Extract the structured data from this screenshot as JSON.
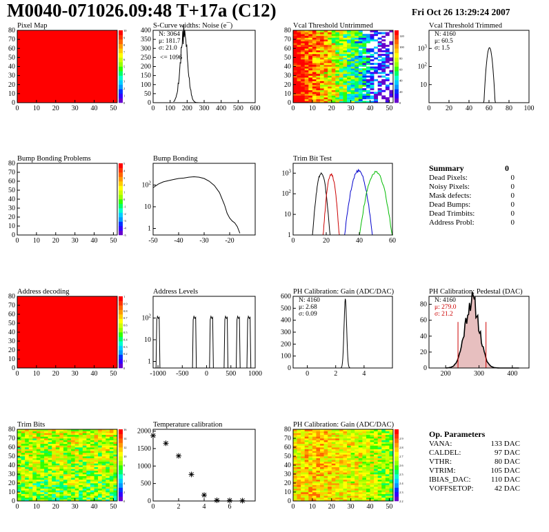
{
  "header": {
    "title": "M0040-071026.09:48 T+17a (C12)",
    "date": "Fri Oct 26 13:29:24 2007"
  },
  "colors": {
    "red": "#ff0000",
    "hist": "#000000",
    "trim_red": "#cc0000",
    "trim_blue": "#0000cc",
    "trim_green": "#00bb00",
    "stat_red": "#cc0000",
    "ped_fill": "#d08080"
  },
  "summary": {
    "title": "Summary",
    "total": "0",
    "rows": [
      {
        "label": "Dead Pixels:",
        "value": "0"
      },
      {
        "label": "Noisy Pixels:",
        "value": "0"
      },
      {
        "label": "Mask defects:",
        "value": "0"
      },
      {
        "label": "Dead Bumps:",
        "value": "0"
      },
      {
        "label": "Dead Trimbits:",
        "value": "0"
      },
      {
        "label": "Address Probl:",
        "value": "0"
      }
    ]
  },
  "op_params": {
    "title": "Op. Parameters",
    "rows": [
      {
        "label": "VANA:",
        "value": "133 DAC"
      },
      {
        "label": "CALDEL:",
        "value": "97 DAC"
      },
      {
        "label": "VTHR:",
        "value": "80 DAC"
      },
      {
        "label": "VTRIM:",
        "value": "105 DAC"
      },
      {
        "label": "IBIAS_DAC:",
        "value": "110 DAC"
      },
      {
        "label": "VOFFSETOP:",
        "value": "42 DAC"
      }
    ]
  },
  "chart_data": [
    {
      "id": "pixel-map",
      "type": "heatmap",
      "title": "Pixel Map",
      "xlim": [
        0,
        52
      ],
      "ylim": [
        0,
        80
      ],
      "xticks": [
        0,
        10,
        20,
        30,
        40,
        50
      ],
      "yticks": [
        0,
        10,
        20,
        30,
        40,
        50,
        60,
        70,
        80
      ],
      "zlim": [
        0,
        10
      ],
      "zticks": [
        0,
        1,
        2,
        3,
        4,
        5,
        6,
        7,
        8,
        9,
        10
      ],
      "fill": "uniform",
      "value": 10
    },
    {
      "id": "scurve-noise",
      "type": "line",
      "title": "S-Curve widths: Noise (e¯)",
      "xlim": [
        0,
        600
      ],
      "ylim": [
        0,
        400
      ],
      "xticks": [
        0,
        100,
        200,
        300,
        400,
        500,
        600
      ],
      "yticks": [
        0,
        50,
        100,
        150,
        200,
        250,
        300,
        350,
        400
      ],
      "stats": {
        "N": "3064",
        "mean": "181.7",
        "sigma": "21.0"
      },
      "annotation": "<= 1096",
      "peak": {
        "mu": 181.7,
        "sigma": 21.0,
        "height": 380
      }
    },
    {
      "id": "vcal-untrimmed",
      "type": "heatmap",
      "title": "Vcal Threshold Untrimmed",
      "xlim": [
        0,
        52
      ],
      "ylim": [
        0,
        80
      ],
      "xticks": [
        0,
        10,
        20,
        30,
        40,
        50
      ],
      "yticks": [
        0,
        10,
        20,
        30,
        40,
        50,
        60,
        70,
        80
      ],
      "zlim": [
        0,
        130
      ],
      "zticks": [
        0,
        20,
        40,
        60,
        80,
        100,
        120
      ],
      "fill": "gradient-x"
    },
    {
      "id": "vcal-trimmed",
      "type": "line",
      "title": "Vcal Threshold Trimmed",
      "xlim": [
        0,
        100
      ],
      "ylim": [
        1,
        10000
      ],
      "log_y": true,
      "xticks": [
        0,
        20,
        40,
        60,
        80,
        100
      ],
      "yticks": [
        10,
        100,
        1000
      ],
      "stats": {
        "N": "4160",
        "mean": "60.5",
        "sigma": "1.5"
      },
      "peak": {
        "mu": 60.5,
        "sigma": 1.5,
        "height": 1100
      }
    },
    {
      "id": "bump-problems",
      "type": "heatmap",
      "title": "Bump Bonding Problems",
      "xlim": [
        0,
        52
      ],
      "ylim": [
        0,
        80
      ],
      "xticks": [
        0,
        10,
        20,
        30,
        40,
        50
      ],
      "yticks": [
        0,
        10,
        20,
        30,
        40,
        50,
        60,
        70,
        80
      ],
      "zlim": [
        -5,
        5
      ],
      "zticks": [
        -5,
        -4,
        -3,
        -2,
        -1,
        0,
        1,
        2,
        3,
        4,
        5
      ],
      "fill": "empty"
    },
    {
      "id": "bump-bonding",
      "type": "line",
      "title": "Bump Bonding",
      "xlim": [
        -50,
        -10
      ],
      "ylim": [
        0.5,
        1000
      ],
      "log_y": true,
      "xticks": [
        -50,
        -40,
        -30,
        -20
      ],
      "yticks": [
        1,
        10,
        100
      ],
      "points": [
        [
          -50,
          75
        ],
        [
          -48,
          110
        ],
        [
          -46,
          140
        ],
        [
          -44,
          160
        ],
        [
          -42,
          180
        ],
        [
          -40,
          200
        ],
        [
          -38,
          210
        ],
        [
          -36,
          230
        ],
        [
          -34,
          240
        ],
        [
          -32,
          230
        ],
        [
          -30,
          200
        ],
        [
          -28,
          150
        ],
        [
          -26,
          95
        ],
        [
          -24,
          45
        ],
        [
          -22,
          12
        ],
        [
          -21,
          5
        ],
        [
          -20,
          3
        ],
        [
          -19,
          2.2
        ],
        [
          -18,
          1.8
        ],
        [
          -17,
          1.2
        ],
        [
          -16,
          0.6
        ]
      ]
    },
    {
      "id": "trim-bit-test",
      "type": "line",
      "title": "Trim Bit Test",
      "xlim": [
        0,
        60
      ],
      "ylim": [
        1,
        3000
      ],
      "log_y": true,
      "xticks": [
        0,
        20,
        40,
        60
      ],
      "yticks": [
        1,
        10,
        100,
        1000
      ],
      "series": [
        {
          "color": "#000000",
          "mu": 17,
          "sigma": 1.4,
          "height": 1000
        },
        {
          "color": "#cc0000",
          "mu": 23,
          "sigma": 1.3,
          "height": 900
        },
        {
          "color": "#0000cc",
          "mu": 39.5,
          "sigma": 2.2,
          "height": 1300
        },
        {
          "color": "#00bb00",
          "mu": 50,
          "sigma": 2.6,
          "height": 1100
        }
      ]
    },
    {
      "id": "address-decoding",
      "type": "heatmap",
      "title": "Address decoding",
      "xlim": [
        0,
        52
      ],
      "ylim": [
        0,
        80
      ],
      "xticks": [
        0,
        10,
        20,
        30,
        40,
        50
      ],
      "yticks": [
        0,
        10,
        20,
        30,
        40,
        50,
        60,
        70,
        80
      ],
      "zlim": [
        0,
        1
      ],
      "zticks": [
        0,
        0.1,
        0.2,
        0.3,
        0.4,
        0.5,
        0.6,
        0.7,
        0.8,
        0.9,
        1
      ],
      "fill": "uniform",
      "value": 1
    },
    {
      "id": "address-levels",
      "type": "line",
      "title": "Address Levels",
      "xlim": [
        -1100,
        1000
      ],
      "ylim": [
        0.5,
        1000
      ],
      "log_y": true,
      "xticks": [
        -1000,
        -500,
        0,
        500,
        1000
      ],
      "yticks": [
        1,
        10,
        100
      ],
      "peaks": [
        -1000,
        -250,
        100,
        400,
        650,
        870
      ],
      "peak_height": 120
    },
    {
      "id": "ph-gain",
      "type": "line",
      "title": "PH Calibration: Gain (ADC/DAC)",
      "xlim": [
        -1,
        6
      ],
      "ylim": [
        0,
        600
      ],
      "xticks": [
        0,
        2,
        4
      ],
      "yticks": [
        0,
        100,
        200,
        300,
        400,
        500,
        600
      ],
      "stats": {
        "N": "4160",
        "mean": "2.68",
        "sigma": "0.09"
      },
      "peak": {
        "mu": 2.68,
        "sigma": 0.09,
        "height": 580
      }
    },
    {
      "id": "ph-pedestal",
      "type": "line",
      "title": "PH Calibration: Pedestal (DAC)",
      "xlim": [
        150,
        450
      ],
      "ylim": [
        0,
        90
      ],
      "xticks": [
        200,
        300,
        400
      ],
      "yticks": [
        0,
        20,
        40,
        60,
        80
      ],
      "stats": {
        "N": "4160",
        "mean": "279.0",
        "sigma": "21.2"
      },
      "peak": {
        "mu": 279.0,
        "sigma": 21.2,
        "height": 85
      },
      "cut_lines": [
        237,
        321
      ]
    },
    {
      "id": "trim-bits",
      "type": "heatmap",
      "title": "Trim Bits",
      "xlim": [
        0,
        52
      ],
      "ylim": [
        0,
        80
      ],
      "xticks": [
        0,
        10,
        20,
        30,
        40,
        50
      ],
      "yticks": [
        0,
        10,
        20,
        30,
        40,
        50,
        60,
        70,
        80
      ],
      "zlim": [
        0,
        16
      ],
      "zticks": [
        0,
        2,
        4,
        6,
        8,
        10,
        12,
        14,
        16
      ],
      "fill": "noise-mid"
    },
    {
      "id": "temp-calibration",
      "type": "scatter",
      "title": "Temperature calibration",
      "xlim": [
        0,
        8
      ],
      "ylim": [
        0,
        2050
      ],
      "xticks": [
        0,
        2,
        4,
        6
      ],
      "yticks": [
        0,
        500,
        1000,
        1500,
        2000
      ],
      "points": [
        [
          0,
          1870
        ],
        [
          1,
          1650
        ],
        [
          2,
          1290
        ],
        [
          3,
          760
        ],
        [
          4,
          170
        ],
        [
          5,
          20
        ],
        [
          6,
          15
        ],
        [
          7,
          10
        ]
      ]
    },
    {
      "id": "ph-gain-map",
      "type": "heatmap",
      "title": "PH Calibration: Gain (ADC/DAC)",
      "xlim": [
        0,
        52
      ],
      "ylim": [
        0,
        80
      ],
      "xticks": [
        0,
        10,
        20,
        30,
        40,
        50
      ],
      "yticks": [
        0,
        10,
        20,
        30,
        40,
        50,
        60,
        70,
        80
      ],
      "zlim": [
        2.2,
        3.0
      ],
      "zticks": [
        2.2,
        2.3,
        2.4,
        2.5,
        2.6,
        2.7,
        2.8,
        2.9
      ],
      "fill": "gain"
    }
  ]
}
